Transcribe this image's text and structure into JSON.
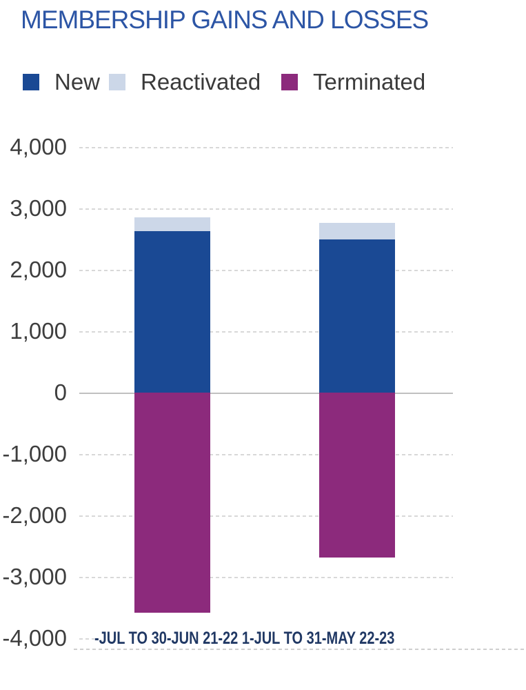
{
  "title": "MEMBERSHIP GAINS AND LOSSES",
  "chart_data": {
    "type": "bar",
    "stacked": true,
    "title": "MEMBERSHIP GAINS AND LOSSES",
    "categories": [
      "-JUL TO 30-JUN 21-22",
      "1-JUL TO 31-MAY 22-23"
    ],
    "series": [
      {
        "name": "New",
        "color": "#1a4994",
        "values": [
          2630,
          2500
        ]
      },
      {
        "name": "Reactivated",
        "color": "#ccd7e8",
        "values": [
          230,
          270
        ]
      },
      {
        "name": "Terminated",
        "color": "#8c2a7c",
        "values": [
          -3590,
          -2690
        ]
      }
    ],
    "ylim": [
      -4000,
      4000
    ],
    "ytick_interval": 1000,
    "ytick_labels": [
      "4,000",
      "3,000",
      "2,000",
      "1,000",
      "0",
      "-1,000",
      "-2,000",
      "-3,000",
      "-4,000"
    ],
    "legend_position": "top",
    "legend_entries": [
      "New",
      "Reactivated",
      "Terminated"
    ],
    "grid": "horizontal-dotted",
    "xlabel": "",
    "ylabel": ""
  },
  "colors": {
    "title_text": "#2c55a5",
    "axis_tick_text": "#3e3e3e",
    "x_label_text": "#203864",
    "legend_text": "#3a3a3a",
    "gridline": "#d8d8d8",
    "zero_line": "#c0c0c0",
    "background": "#ffffff"
  }
}
